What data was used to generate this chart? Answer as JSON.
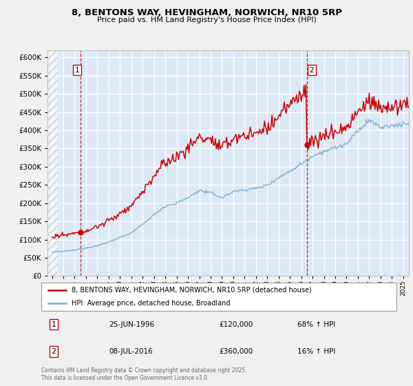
{
  "title": "8, BENTONS WAY, HEVINGHAM, NORWICH, NR10 5RP",
  "subtitle": "Price paid vs. HM Land Registry's House Price Index (HPI)",
  "legend_line1": "8, BENTONS WAY, HEVINGHAM, NORWICH, NR10 5RP (detached house)",
  "legend_line2": "HPI: Average price, detached house, Broadland",
  "sale1_date": "25-JUN-1996",
  "sale1_price": "£120,000",
  "sale1_hpi": "68% ↑ HPI",
  "sale1_year": 1996.49,
  "sale1_value": 120000,
  "sale2_date": "08-JUL-2016",
  "sale2_price": "£360,000",
  "sale2_hpi": "16% ↑ HPI",
  "sale2_year": 2016.52,
  "sale2_value": 360000,
  "hpi_color": "#7aadd4",
  "price_color": "#cc0000",
  "vline_color": "#cc0000",
  "plot_bg": "#dce9f5",
  "fig_bg": "#f0f0f0",
  "ylim": [
    0,
    620000
  ],
  "xmin": 1993.6,
  "xmax": 2025.5,
  "footer": "Contains HM Land Registry data © Crown copyright and database right 2025.\nThis data is licensed under the Open Government Licence v3.0.",
  "hatch_region_end": 1994.5
}
